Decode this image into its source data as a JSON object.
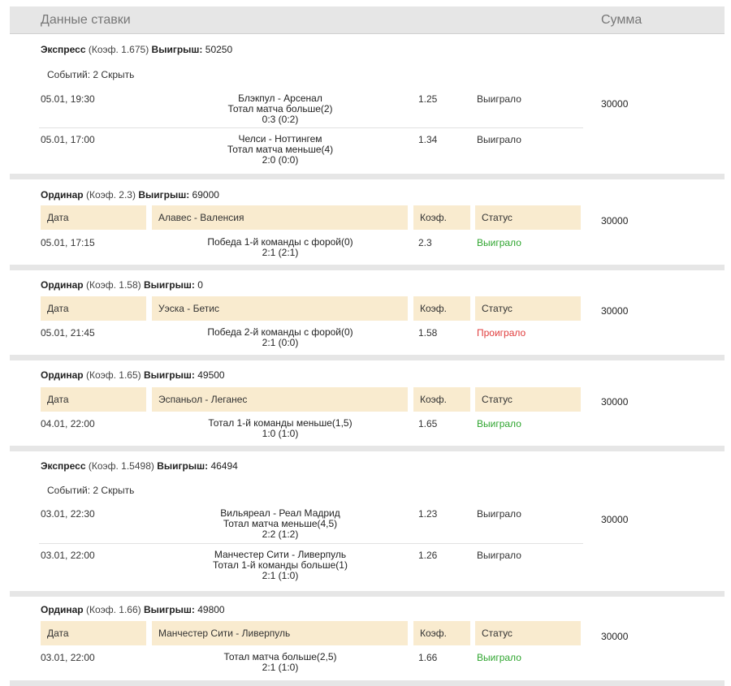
{
  "header": {
    "title": "Данные ставки",
    "sum_label": "Сумма"
  },
  "bets": [
    {
      "type": "Экспресс",
      "coef": "(Коэф. 1.675)",
      "win_label": "Выигрыш:",
      "win": "50250",
      "events_text": "Событий: 2 Скрыть",
      "sum": "30000",
      "rows": [
        {
          "date": "05.01, 19:30",
          "match": "Блэкпул - Арсенал",
          "market": "Тотал матча больше(2)",
          "score": "0:3 (0:2)",
          "odd": "1.25",
          "status": "Выиграло"
        },
        {
          "date": "05.01, 17:00",
          "match": "Челси - Ноттингем",
          "market": "Тотал матча меньше(4)",
          "score": "2:0 (0:0)",
          "odd": "1.34",
          "status": "Выиграло"
        }
      ]
    },
    {
      "type": "Ординар",
      "coef": "(Коэф. 2.3)",
      "win_label": "Выигрыш:",
      "win": "69000",
      "headers": {
        "date": "Дата",
        "match": "Алавес - Валенсия",
        "coef": "Коэф.",
        "status": "Статус"
      },
      "sum": "30000",
      "row": {
        "date": "05.01, 17:15",
        "market": "Победа 1-й команды с форой(0)",
        "score": "2:1 (2:1)",
        "odd": "2.3",
        "status": "Выиграло"
      }
    },
    {
      "type": "Ординар",
      "coef": "(Коэф. 1.58)",
      "win_label": "Выигрыш:",
      "win": "0",
      "headers": {
        "date": "Дата",
        "match": "Уэска - Бетис",
        "coef": "Коэф.",
        "status": "Статус"
      },
      "sum": "30000",
      "row": {
        "date": "05.01, 21:45",
        "market": "Победа 2-й команды с форой(0)",
        "score": "2:1 (0:0)",
        "odd": "1.58",
        "status": "Проиграло"
      }
    },
    {
      "type": "Ординар",
      "coef": "(Коэф. 1.65)",
      "win_label": "Выигрыш:",
      "win": "49500",
      "headers": {
        "date": "Дата",
        "match": "Эспаньол - Леганес",
        "coef": "Коэф.",
        "status": "Статус"
      },
      "sum": "30000",
      "row": {
        "date": "04.01, 22:00",
        "market": "Тотал 1-й команды меньше(1,5)",
        "score": "1:0 (1:0)",
        "odd": "1.65",
        "status": "Выиграло"
      }
    },
    {
      "type": "Экспресс",
      "coef": "(Коэф. 1.5498)",
      "win_label": "Выигрыш:",
      "win": "46494",
      "events_text": "Событий: 2 Скрыть",
      "sum": "30000",
      "rows": [
        {
          "date": "03.01, 22:30",
          "match": "Вильяреал - Реал Мадрид",
          "market": "Тотал матча меньше(4,5)",
          "score": "2:2 (1:2)",
          "odd": "1.23",
          "status": "Выиграло"
        },
        {
          "date": "03.01, 22:00",
          "match": "Манчестер Сити - Ливерпуль",
          "market": "Тотал 1-й команды больше(1)",
          "score": "2:1 (1:0)",
          "odd": "1.26",
          "status": "Выиграло"
        }
      ]
    },
    {
      "type": "Ординар",
      "coef": "(Коэф. 1.66)",
      "win_label": "Выигрыш:",
      "win": "49800",
      "headers": {
        "date": "Дата",
        "match": "Манчестер Сити - Ливерпуль",
        "coef": "Коэф.",
        "status": "Статус"
      },
      "sum": "30000",
      "row": {
        "date": "03.01, 22:00",
        "market": "Тотал матча больше(2,5)",
        "score": "2:1 (1:0)",
        "odd": "1.66",
        "status": "Выиграло"
      }
    }
  ],
  "colors": {
    "win": "#2fa52f",
    "loss": "#e03c3c",
    "header_bg": "#f9ebcf",
    "separator": "#e6e6e6"
  }
}
